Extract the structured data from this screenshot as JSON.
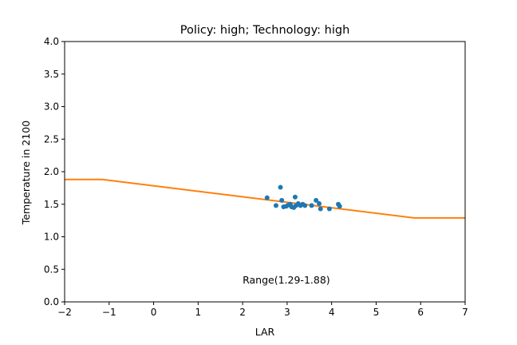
{
  "chart_data": {
    "type": "scatter",
    "title": "Policy: high; Technology: high",
    "xlabel": "LAR",
    "ylabel": "Temperature in 2100",
    "xlim": [
      -2,
      7
    ],
    "ylim": [
      0.0,
      4.0
    ],
    "xticks": [
      -2,
      -1,
      0,
      1,
      2,
      3,
      4,
      5,
      6,
      7
    ],
    "xtick_labels": [
      "−2",
      "−1",
      "0",
      "1",
      "2",
      "3",
      "4",
      "5",
      "6",
      "7"
    ],
    "yticks": [
      0.0,
      0.5,
      1.0,
      1.5,
      2.0,
      2.5,
      3.0,
      3.5,
      4.0
    ],
    "ytick_labels": [
      "0.0",
      "0.5",
      "1.0",
      "1.5",
      "2.0",
      "2.5",
      "3.0",
      "3.5",
      "4.0"
    ],
    "grid": false,
    "annotation": {
      "text": "Range(1.29-1.88)",
      "x": 2.0,
      "y": 0.28
    },
    "scatter_color": "#1f77b4",
    "line_color": "#ff7f0e",
    "points": [
      {
        "x": 2.55,
        "y": 1.6
      },
      {
        "x": 2.75,
        "y": 1.48
      },
      {
        "x": 2.85,
        "y": 1.76
      },
      {
        "x": 2.88,
        "y": 1.56
      },
      {
        "x": 2.92,
        "y": 1.46
      },
      {
        "x": 2.98,
        "y": 1.47
      },
      {
        "x": 3.03,
        "y": 1.49
      },
      {
        "x": 3.07,
        "y": 1.5
      },
      {
        "x": 3.1,
        "y": 1.46
      },
      {
        "x": 3.15,
        "y": 1.45
      },
      {
        "x": 3.18,
        "y": 1.61
      },
      {
        "x": 3.2,
        "y": 1.48
      },
      {
        "x": 3.25,
        "y": 1.51
      },
      {
        "x": 3.3,
        "y": 1.48
      },
      {
        "x": 3.35,
        "y": 1.5
      },
      {
        "x": 3.4,
        "y": 1.48
      },
      {
        "x": 3.55,
        "y": 1.48
      },
      {
        "x": 3.65,
        "y": 1.56
      },
      {
        "x": 3.72,
        "y": 1.51
      },
      {
        "x": 3.75,
        "y": 1.43
      },
      {
        "x": 3.95,
        "y": 1.43
      },
      {
        "x": 4.15,
        "y": 1.5
      },
      {
        "x": 4.18,
        "y": 1.47
      }
    ],
    "line": [
      {
        "x": -2.0,
        "y": 1.88
      },
      {
        "x": -1.15,
        "y": 1.88
      },
      {
        "x": 5.85,
        "y": 1.29
      },
      {
        "x": 7.0,
        "y": 1.29
      }
    ]
  }
}
